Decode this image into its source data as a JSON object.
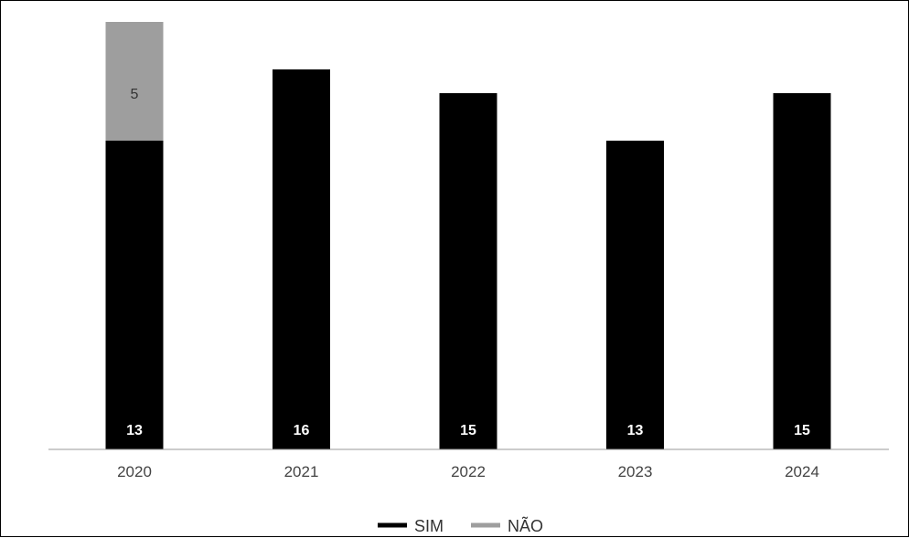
{
  "chart_data": {
    "type": "bar",
    "stacked": true,
    "categories": [
      "2020",
      "2021",
      "2022",
      "2023",
      "2024"
    ],
    "series": [
      {
        "name": "SIM",
        "values": [
          13,
          16,
          15,
          13,
          15
        ],
        "color": "#000000"
      },
      {
        "name": "NÃO",
        "values": [
          5,
          0,
          0,
          0,
          0
        ],
        "color": "#9e9e9e"
      }
    ],
    "ylim": [
      0,
      18
    ],
    "grid": false,
    "legend_position": "bottom",
    "title": "",
    "xlabel": "",
    "ylabel": ""
  }
}
